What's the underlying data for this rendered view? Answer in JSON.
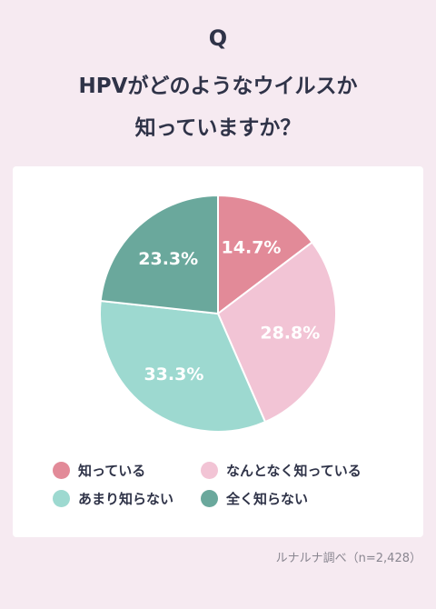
{
  "header": {
    "q_mark": "Q",
    "title_line1": "HPVがどのようなウイルスか",
    "title_line2": "知っていますか？"
  },
  "chart_data": {
    "type": "pie",
    "categories": [
      "知っている",
      "なんとなく知っている",
      "あまり知らない",
      "全く知らない"
    ],
    "values": [
      14.7,
      28.8,
      33.3,
      23.3
    ],
    "labels": [
      "14.7%",
      "28.8%",
      "33.3%",
      "23.3%"
    ],
    "colors": [
      "#e28a98",
      "#f2c4d5",
      "#9dd9d0",
      "#6aa89c"
    ],
    "title": "",
    "legend_placement": "bottom"
  },
  "legend": [
    {
      "label": "知っている",
      "color": "#e28a98"
    },
    {
      "label": "なんとなく知っている",
      "color": "#f2c4d5"
    },
    {
      "label": "あまり知らない",
      "color": "#9dd9d0"
    },
    {
      "label": "全く知らない",
      "color": "#6aa89c"
    }
  ],
  "source": "ルナルナ調べ（n=2,428）"
}
